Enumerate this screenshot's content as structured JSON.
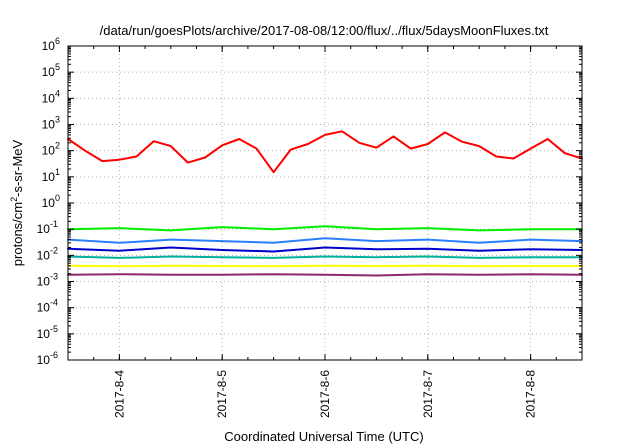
{
  "chart_data": {
    "type": "line",
    "title": "/data/run/goesPlots/archive/2017-08-08/12:00/flux/../flux/5daysMoonFluxes.txt",
    "xlabel": "Coordinated Universal Time (UTC)",
    "ylabel": "protons/cm2-s-sr-MeV",
    "ylabel_parts": {
      "prefix": "protons/cm",
      "sup": "2",
      "suffix": "-s-sr-MeV"
    },
    "y_scale": "log",
    "ylim": [
      1e-06,
      1000000.0
    ],
    "y_ticks": [
      {
        "value": 1e-06,
        "base": "10",
        "exp": "-6"
      },
      {
        "value": 1e-05,
        "base": "10",
        "exp": "-5"
      },
      {
        "value": 0.0001,
        "base": "10",
        "exp": "-4"
      },
      {
        "value": 0.001,
        "base": "10",
        "exp": "-3"
      },
      {
        "value": 0.01,
        "base": "10",
        "exp": "-2"
      },
      {
        "value": 0.1,
        "base": "10",
        "exp": "-1"
      },
      {
        "value": 1,
        "base": "10",
        "exp": "0"
      },
      {
        "value": 10,
        "base": "10",
        "exp": "1"
      },
      {
        "value": 100,
        "base": "10",
        "exp": "2"
      },
      {
        "value": 1000,
        "base": "10",
        "exp": "3"
      },
      {
        "value": 10000,
        "base": "10",
        "exp": "4"
      },
      {
        "value": 100000,
        "base": "10",
        "exp": "5"
      },
      {
        "value": 1000000,
        "base": "10",
        "exp": "6"
      }
    ],
    "xlim": [
      "2017-08-03 12:00",
      "2017-08-08 12:00"
    ],
    "x_ticks": [
      "2017-8-4",
      "2017-8-5",
      "2017-8-6",
      "2017-8-7",
      "2017-8-8"
    ],
    "grid": true,
    "legend": "none",
    "series": [
      {
        "color": "#ff0000",
        "x": [
          "2017-08-03 12:00",
          "2017-08-03 16:00",
          "2017-08-03 20:00",
          "2017-08-04 00:00",
          "2017-08-04 04:00",
          "2017-08-04 08:00",
          "2017-08-04 12:00",
          "2017-08-04 16:00",
          "2017-08-04 20:00",
          "2017-08-05 00:00",
          "2017-08-05 04:00",
          "2017-08-05 08:00",
          "2017-08-05 12:00",
          "2017-08-05 16:00",
          "2017-08-05 20:00",
          "2017-08-06 00:00",
          "2017-08-06 04:00",
          "2017-08-06 08:00",
          "2017-08-06 12:00",
          "2017-08-06 16:00",
          "2017-08-06 20:00",
          "2017-08-07 00:00",
          "2017-08-07 04:00",
          "2017-08-07 08:00",
          "2017-08-07 12:00",
          "2017-08-07 16:00",
          "2017-08-07 20:00",
          "2017-08-08 00:00",
          "2017-08-08 04:00",
          "2017-08-08 08:00",
          "2017-08-08 12:00"
        ],
        "y": [
          280,
          100,
          40,
          45,
          60,
          230,
          150,
          35,
          55,
          160,
          280,
          120,
          15,
          110,
          180,
          400,
          550,
          200,
          130,
          350,
          120,
          180,
          500,
          220,
          150,
          60,
          50,
          120,
          280,
          80,
          50
        ]
      },
      {
        "color": "#00ee00",
        "x": [
          "2017-08-03 12:00",
          "2017-08-04 00:00",
          "2017-08-04 12:00",
          "2017-08-05 00:00",
          "2017-08-05 12:00",
          "2017-08-06 00:00",
          "2017-08-06 12:00",
          "2017-08-07 00:00",
          "2017-08-07 12:00",
          "2017-08-08 00:00",
          "2017-08-08 12:00"
        ],
        "y": [
          0.1,
          0.11,
          0.09,
          0.12,
          0.1,
          0.13,
          0.1,
          0.11,
          0.09,
          0.1,
          0.1
        ]
      },
      {
        "color": "#2a7fff",
        "x": [
          "2017-08-03 12:00",
          "2017-08-04 00:00",
          "2017-08-04 12:00",
          "2017-08-05 00:00",
          "2017-08-05 12:00",
          "2017-08-06 00:00",
          "2017-08-06 12:00",
          "2017-08-07 00:00",
          "2017-08-07 12:00",
          "2017-08-08 00:00",
          "2017-08-08 12:00"
        ],
        "y": [
          0.04,
          0.03,
          0.04,
          0.035,
          0.03,
          0.045,
          0.035,
          0.04,
          0.03,
          0.04,
          0.035
        ]
      },
      {
        "color": "#0000cc",
        "x": [
          "2017-08-03 12:00",
          "2017-08-04 00:00",
          "2017-08-04 12:00",
          "2017-08-05 00:00",
          "2017-08-05 12:00",
          "2017-08-06 00:00",
          "2017-08-06 12:00",
          "2017-08-07 00:00",
          "2017-08-07 12:00",
          "2017-08-08 00:00",
          "2017-08-08 12:00"
        ],
        "y": [
          0.018,
          0.015,
          0.02,
          0.016,
          0.014,
          0.02,
          0.017,
          0.018,
          0.015,
          0.017,
          0.016
        ]
      },
      {
        "color": "#00b0a0",
        "x": [
          "2017-08-03 12:00",
          "2017-08-04 00:00",
          "2017-08-04 12:00",
          "2017-08-05 00:00",
          "2017-08-05 12:00",
          "2017-08-06 00:00",
          "2017-08-06 12:00",
          "2017-08-07 00:00",
          "2017-08-07 12:00",
          "2017-08-08 00:00",
          "2017-08-08 12:00"
        ],
        "y": [
          0.009,
          0.008,
          0.009,
          0.0085,
          0.008,
          0.009,
          0.0085,
          0.009,
          0.008,
          0.0085,
          0.0085
        ]
      },
      {
        "color": "#ffff00",
        "x": [
          "2017-08-03 12:00",
          "2017-08-04 00:00",
          "2017-08-04 12:00",
          "2017-08-05 00:00",
          "2017-08-05 12:00",
          "2017-08-06 00:00",
          "2017-08-06 12:00",
          "2017-08-07 00:00",
          "2017-08-07 12:00",
          "2017-08-08 00:00",
          "2017-08-08 12:00"
        ],
        "y": [
          0.004,
          0.0038,
          0.004,
          0.0039,
          0.0038,
          0.004,
          0.0039,
          0.004,
          0.0038,
          0.0039,
          0.0039
        ]
      },
      {
        "color": "#8b2a6b",
        "x": [
          "2017-08-03 12:00",
          "2017-08-04 00:00",
          "2017-08-04 12:00",
          "2017-08-05 00:00",
          "2017-08-05 12:00",
          "2017-08-06 00:00",
          "2017-08-06 12:00",
          "2017-08-07 00:00",
          "2017-08-07 12:00",
          "2017-08-08 00:00",
          "2017-08-08 12:00"
        ],
        "y": [
          0.0018,
          0.0019,
          0.0018,
          0.0018,
          0.0019,
          0.0018,
          0.0017,
          0.0019,
          0.0018,
          0.0019,
          0.0018
        ]
      }
    ]
  }
}
